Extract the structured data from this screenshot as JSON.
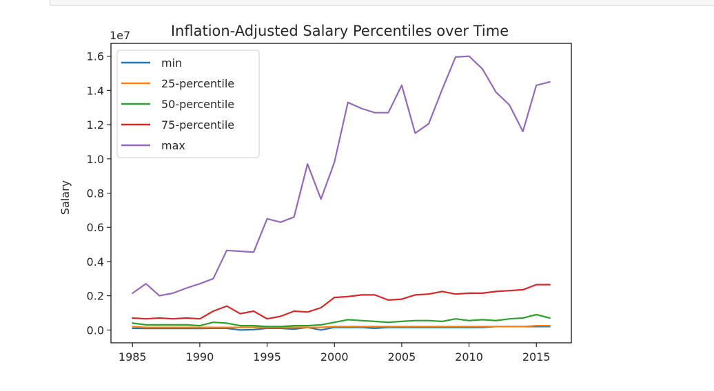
{
  "chart_data": {
    "type": "line",
    "title": "Inflation-Adjusted Salary Percentiles over Time",
    "xlabel": "",
    "ylabel": "Salary",
    "y_offset_label": "1e7",
    "xlim": [
      1983.4,
      2017.6
    ],
    "ylim": [
      -750000,
      16750000
    ],
    "x_ticks": [
      1985,
      1990,
      1995,
      2000,
      2005,
      2010,
      2015
    ],
    "y_ticks": [
      0,
      2000000,
      4000000,
      6000000,
      8000000,
      10000000,
      12000000,
      14000000,
      16000000
    ],
    "y_tick_labels": [
      "0.0",
      "0.2",
      "0.4",
      "0.6",
      "0.8",
      "1.0",
      "1.2",
      "1.4",
      "1.6"
    ],
    "legend_position": "upper-left",
    "grid": false,
    "x": [
      1985,
      1986,
      1987,
      1988,
      1989,
      1990,
      1991,
      1992,
      1993,
      1994,
      1995,
      1996,
      1997,
      1998,
      1999,
      2000,
      2001,
      2002,
      2003,
      2004,
      2005,
      2006,
      2007,
      2008,
      2009,
      2010,
      2011,
      2012,
      2013,
      2014,
      2015,
      2016
    ],
    "series": [
      {
        "name": "min",
        "color": "#1f77b4",
        "values": [
          100000,
          90000,
          90000,
          90000,
          90000,
          90000,
          100000,
          100000,
          0,
          20000,
          100000,
          100000,
          50000,
          150000,
          0,
          150000,
          150000,
          150000,
          100000,
          150000,
          150000,
          150000,
          150000,
          150000,
          150000,
          150000,
          150000,
          200000,
          200000,
          200000,
          200000,
          200000
        ]
      },
      {
        "name": "25-percentile",
        "color": "#ff7f0e",
        "values": [
          200000,
          150000,
          150000,
          150000,
          150000,
          150000,
          150000,
          150000,
          150000,
          150000,
          150000,
          150000,
          150000,
          150000,
          150000,
          200000,
          200000,
          200000,
          200000,
          200000,
          200000,
          200000,
          200000,
          200000,
          200000,
          200000,
          200000,
          200000,
          200000,
          200000,
          250000,
          250000
        ]
      },
      {
        "name": "50-percentile",
        "color": "#2ca02c",
        "values": [
          400000,
          300000,
          300000,
          300000,
          300000,
          250000,
          450000,
          400000,
          250000,
          250000,
          200000,
          200000,
          250000,
          250000,
          300000,
          450000,
          600000,
          550000,
          500000,
          450000,
          500000,
          550000,
          550000,
          500000,
          650000,
          550000,
          600000,
          550000,
          650000,
          700000,
          900000,
          700000
        ]
      },
      {
        "name": "75-percentile",
        "color": "#d62728",
        "values": [
          700000,
          650000,
          700000,
          650000,
          700000,
          650000,
          1100000,
          1400000,
          950000,
          1100000,
          650000,
          800000,
          1100000,
          1050000,
          1300000,
          1900000,
          1950000,
          2050000,
          2050000,
          1750000,
          1800000,
          2050000,
          2100000,
          2250000,
          2100000,
          2150000,
          2150000,
          2250000,
          2300000,
          2350000,
          2650000,
          2650000
        ]
      },
      {
        "name": "max",
        "color": "#9467bd",
        "values": [
          2150000,
          2700000,
          2000000,
          2150000,
          2450000,
          2700000,
          3000000,
          4650000,
          4600000,
          4550000,
          6500000,
          6300000,
          6600000,
          9700000,
          7650000,
          9800000,
          13300000,
          12950000,
          12700000,
          12700000,
          14300000,
          11500000,
          12050000,
          14050000,
          15950000,
          16000000,
          15250000,
          13900000,
          13150000,
          11600000,
          14300000,
          14500000
        ]
      }
    ]
  }
}
